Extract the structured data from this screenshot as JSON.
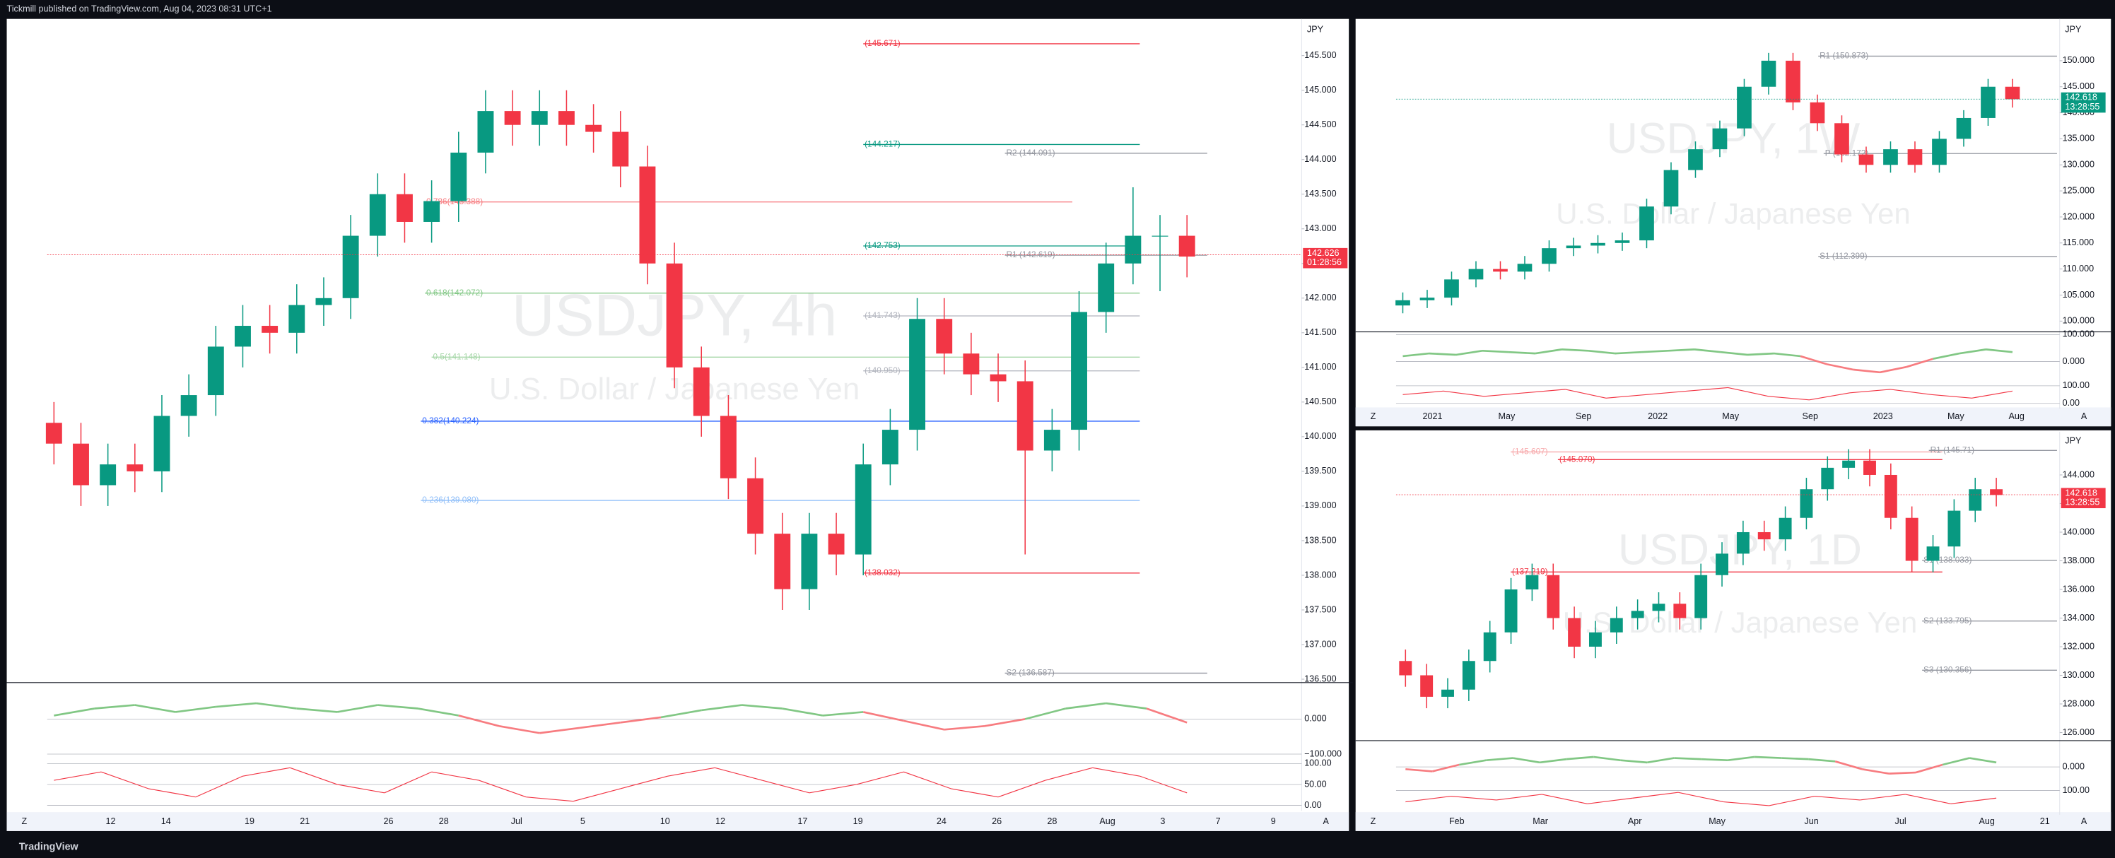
{
  "header": "Tickmill published on TradingView.com, Aug 04, 2023 08:31 UTC+1",
  "footer": "TradingView",
  "panels": [
    {
      "symbol": "USDJPY, 4h",
      "description": "U.S. Dollar / Japanese Yen",
      "currency": "JPY",
      "buttons": [
        "Z",
        "A"
      ],
      "last_price": 142.626,
      "countdown": "01:28:56",
      "tag_color": "#f23645",
      "ylim": [
        136.47,
        146.03
      ],
      "yticks": [
        {
          "value": 145.5,
          "label": "145.500"
        },
        {
          "value": 145,
          "label": "145.000"
        },
        {
          "value": 144.5,
          "label": "144.500"
        },
        {
          "value": 144,
          "label": "144.000"
        },
        {
          "value": 143.5,
          "label": "143.500"
        },
        {
          "value": 143,
          "label": "143.000"
        },
        {
          "value": 142.5,
          "label": "142.500"
        },
        {
          "value": 142,
          "label": "142.000"
        },
        {
          "value": 141.5,
          "label": "141.500"
        },
        {
          "value": 141,
          "label": "141.000"
        },
        {
          "value": 140.5,
          "label": "140.500"
        },
        {
          "value": 140,
          "label": "140.000"
        },
        {
          "value": 139.5,
          "label": "139.500"
        },
        {
          "value": 139,
          "label": "139.000"
        },
        {
          "value": 138.5,
          "label": "138.500"
        },
        {
          "value": 138,
          "label": "138.000"
        },
        {
          "value": 137.5,
          "label": "137.500"
        },
        {
          "value": 137,
          "label": "137.000"
        },
        {
          "value": 136.5,
          "label": "136.500"
        }
      ],
      "xticks": [
        "12",
        "14",
        "19",
        "21",
        "26",
        "28",
        "Jul",
        "5",
        "10",
        "12",
        "17",
        "19",
        "24",
        "26",
        "28",
        "Aug",
        "3",
        "7",
        "9"
      ],
      "candles": [
        [
          140.2,
          140.5,
          139.6,
          139.9
        ],
        [
          139.9,
          140.2,
          139.0,
          139.3
        ],
        [
          139.3,
          139.9,
          139.0,
          139.6
        ],
        [
          139.6,
          139.9,
          139.2,
          139.5
        ],
        [
          139.5,
          140.6,
          139.2,
          140.3
        ],
        [
          140.3,
          140.9,
          140.0,
          140.6
        ],
        [
          140.6,
          141.6,
          140.3,
          141.3
        ],
        [
          141.3,
          141.9,
          141.0,
          141.6
        ],
        [
          141.6,
          141.9,
          141.2,
          141.5
        ],
        [
          141.5,
          142.2,
          141.2,
          141.9
        ],
        [
          141.9,
          142.3,
          141.6,
          142.0
        ],
        [
          142.0,
          143.2,
          141.7,
          142.9
        ],
        [
          142.9,
          143.8,
          142.6,
          143.5
        ],
        [
          143.5,
          143.8,
          142.8,
          143.1
        ],
        [
          143.1,
          143.7,
          142.8,
          143.4
        ],
        [
          143.4,
          144.4,
          143.1,
          144.1
        ],
        [
          144.1,
          145.0,
          143.8,
          144.7
        ],
        [
          144.7,
          145.0,
          144.2,
          144.5
        ],
        [
          144.5,
          145.0,
          144.2,
          144.7
        ],
        [
          144.7,
          145.0,
          144.2,
          144.5
        ],
        [
          144.5,
          144.8,
          144.1,
          144.4
        ],
        [
          144.4,
          144.7,
          143.6,
          143.9
        ],
        [
          143.9,
          144.2,
          142.2,
          142.5
        ],
        [
          142.5,
          142.8,
          140.7,
          141.0
        ],
        [
          141.0,
          141.3,
          140.0,
          140.3
        ],
        [
          140.3,
          140.6,
          139.1,
          139.4
        ],
        [
          139.4,
          139.7,
          138.3,
          138.6
        ],
        [
          138.6,
          138.9,
          137.5,
          137.8
        ],
        [
          137.8,
          138.9,
          137.5,
          138.6
        ],
        [
          138.6,
          138.9,
          138.0,
          138.3
        ],
        [
          138.3,
          139.9,
          138.0,
          139.6
        ],
        [
          139.6,
          140.4,
          139.3,
          140.1
        ],
        [
          140.1,
          142.0,
          139.8,
          141.7
        ],
        [
          141.7,
          142.0,
          140.9,
          141.2
        ],
        [
          141.2,
          141.5,
          140.6,
          140.9
        ],
        [
          140.9,
          141.2,
          140.5,
          140.8
        ],
        [
          140.8,
          141.1,
          138.3,
          139.8
        ],
        [
          139.8,
          140.4,
          139.5,
          140.1
        ],
        [
          140.1,
          142.1,
          139.8,
          141.8
        ],
        [
          141.8,
          142.8,
          141.5,
          142.5
        ],
        [
          142.5,
          143.6,
          142.2,
          142.9
        ],
        [
          142.9,
          143.2,
          142.1,
          142.9
        ],
        [
          142.9,
          143.2,
          142.3,
          142.6
        ]
      ],
      "levels": [
        {
          "label": "(145.671)",
          "value": 145.671,
          "color": "#f23645"
        },
        {
          "label": "(144.217)",
          "value": 144.217,
          "color": "#089981"
        },
        {
          "label": "R2 (144.091)",
          "value": 144.091,
          "color": "#9598a1"
        },
        {
          "label": "0.786(143.388)",
          "value": 143.388,
          "color": "#f77c80"
        },
        {
          "label": "(142.753)",
          "value": 142.753,
          "color": "#089981"
        },
        {
          "label": "R1 (142.619)",
          "value": 142.619,
          "color": "#9598a1"
        },
        {
          "label": "0.618(142.072)",
          "value": 142.072,
          "color": "#81c784"
        },
        {
          "label": "(141.743)",
          "value": 141.743,
          "color": "#b2b5be"
        },
        {
          "label": "0.5(141.148)",
          "value": 141.148,
          "color": "#a5d6a7"
        },
        {
          "label": "(140.950)",
          "value": 140.95,
          "color": "#b2b5be"
        },
        {
          "label": "0.382(140.224)",
          "value": 140.224,
          "color": "#2962ff"
        },
        {
          "label": "0.236(139.080)",
          "value": 139.08,
          "color": "#90bff9"
        },
        {
          "label": "(138.032)",
          "value": 138.032,
          "color": "#f23645"
        },
        {
          "label": "S2 (136.587)",
          "value": 136.587,
          "color": "#9598a1"
        }
      ],
      "osc": {
        "ylim": [
          -100,
          100
        ],
        "yticks": [
          {
            "value": 0,
            "label": "0.000"
          },
          {
            "value": -100,
            "label": "−100.000"
          }
        ],
        "values": [
          10,
          30,
          40,
          20,
          35,
          45,
          30,
          20,
          40,
          30,
          10,
          -20,
          -40,
          -25,
          -10,
          5,
          25,
          40,
          30,
          10,
          20,
          -5,
          -30,
          -20,
          0,
          30,
          45,
          30,
          -10
        ]
      },
      "stoch": {
        "ylim": [
          0,
          100
        ],
        "yticks": [
          {
            "value": 100,
            "label": "100.00"
          },
          {
            "value": 50,
            "label": "50.00"
          },
          {
            "value": 0,
            "label": "0.00"
          }
        ],
        "values": [
          60,
          80,
          40,
          20,
          70,
          90,
          50,
          30,
          80,
          60,
          20,
          10,
          40,
          70,
          90,
          60,
          30,
          50,
          80,
          40,
          20,
          60,
          90,
          70,
          30
        ]
      }
    },
    {
      "symbol": "USDJPY, 1W",
      "description": "U.S. Dollar / Japanese Yen",
      "currency": "JPY",
      "buttons": [
        "Z",
        "A"
      ],
      "last_price": 142.618,
      "countdown": "13:28:55",
      "tag_color": "#089981",
      "ylim": [
        98.19,
        158.03
      ],
      "yticks": [
        {
          "value": 150,
          "label": "150.000"
        },
        {
          "value": 145,
          "label": "145.000"
        },
        {
          "value": 140,
          "label": "140.000"
        },
        {
          "value": 135,
          "label": "135.000"
        },
        {
          "value": 130,
          "label": "130.000"
        },
        {
          "value": 125,
          "label": "125.000"
        },
        {
          "value": 120,
          "label": "120.000"
        },
        {
          "value": 115,
          "label": "115.000"
        },
        {
          "value": 110,
          "label": "110.000"
        },
        {
          "value": 105,
          "label": "105.000"
        },
        {
          "value": 100,
          "label": "100.000"
        }
      ],
      "xticks": [
        "2021",
        "May",
        "Sep",
        "2022",
        "May",
        "Sep",
        "2023",
        "May",
        "Aug"
      ],
      "candles": [
        [
          103,
          105.5,
          101.5,
          104
        ],
        [
          104,
          106,
          102.5,
          104.5
        ],
        [
          104.5,
          109.5,
          103,
          108
        ],
        [
          108,
          111.5,
          106.5,
          110
        ],
        [
          110,
          111.5,
          108,
          109.5
        ],
        [
          109.5,
          112.5,
          108,
          111
        ],
        [
          111,
          115.5,
          109.5,
          114
        ],
        [
          114,
          116,
          112.5,
          114.5
        ],
        [
          114.5,
          116.5,
          113,
          115
        ],
        [
          115,
          117,
          113.5,
          115.5
        ],
        [
          115.5,
          123.5,
          114,
          122
        ],
        [
          122,
          130.5,
          120.5,
          129
        ],
        [
          129,
          134.5,
          127.5,
          133
        ],
        [
          133,
          138.5,
          131.5,
          137
        ],
        [
          137,
          146.5,
          135.5,
          145
        ],
        [
          145,
          151.5,
          143.5,
          150
        ],
        [
          150,
          151.5,
          140.5,
          142
        ],
        [
          142,
          143.5,
          136.5,
          138
        ],
        [
          138,
          139.5,
          130.5,
          132
        ],
        [
          132,
          133.5,
          128.5,
          130
        ],
        [
          130,
          134.5,
          128.5,
          133
        ],
        [
          133,
          134.5,
          128.5,
          130
        ],
        [
          130,
          136.5,
          128.5,
          135
        ],
        [
          135,
          140.5,
          133.5,
          139
        ],
        [
          139,
          146.5,
          137.5,
          145
        ],
        [
          145,
          146.5,
          141,
          142.6
        ]
      ],
      "levels": [
        {
          "label": "R1 (150.873)",
          "value": 150.873,
          "color": "#9598a1"
        },
        {
          "label": "P (132.172)",
          "value": 132.172,
          "color": "#9598a1"
        },
        {
          "label": "S1 (112.399)",
          "value": 112.399,
          "color": "#9598a1"
        }
      ],
      "osc": {
        "ylim": [
          -100,
          100
        ],
        "yticks": [
          {
            "value": 100,
            "label": "100.000"
          },
          {
            "value": 0,
            "label": "0.000"
          }
        ],
        "values": [
          20,
          30,
          25,
          40,
          35,
          30,
          45,
          40,
          30,
          35,
          40,
          45,
          35,
          25,
          30,
          20,
          -10,
          -30,
          -40,
          -20,
          10,
          30,
          45,
          35
        ]
      },
      "stoch": {
        "ylim": [
          0,
          100
        ],
        "yticks": [
          {
            "value": 100,
            "label": "100.00"
          },
          {
            "value": 0,
            "label": "0.00"
          }
        ],
        "values": [
          50,
          70,
          40,
          60,
          80,
          30,
          50,
          70,
          90,
          40,
          20,
          60,
          80,
          50,
          30,
          70
        ]
      }
    },
    {
      "symbol": "USDJPY, 1D",
      "description": "U.S. Dollar / Japanese Yen",
      "currency": "JPY",
      "buttons": [
        "Z",
        "A"
      ],
      "last_price": 142.618,
      "countdown": "13:28:55",
      "tag_color": "#f23645",
      "ylim": [
        125.53,
        147.02
      ],
      "yticks": [
        {
          "value": 144,
          "label": "144.000"
        },
        {
          "value": 142,
          "label": "142.000"
        },
        {
          "value": 140,
          "label": "140.000"
        },
        {
          "value": 138,
          "label": "138.000"
        },
        {
          "value": 136,
          "label": "136.000"
        },
        {
          "value": 134,
          "label": "134.000"
        },
        {
          "value": 132,
          "label": "132.000"
        },
        {
          "value": 130,
          "label": "130.000"
        },
        {
          "value": 128,
          "label": "128.000"
        },
        {
          "value": 126,
          "label": "126.000"
        }
      ],
      "xticks": [
        "Feb",
        "Mar",
        "Apr",
        "May",
        "Jun",
        "Jul",
        "Aug",
        "21"
      ],
      "candles": [
        [
          131,
          131.8,
          129.2,
          130
        ],
        [
          130,
          130.8,
          127.7,
          128.5
        ],
        [
          128.5,
          129.8,
          127.7,
          129
        ],
        [
          129,
          131.8,
          128.2,
          131
        ],
        [
          131,
          133.8,
          130.2,
          133
        ],
        [
          133,
          136.8,
          132.2,
          136
        ],
        [
          136,
          137.8,
          135.2,
          137
        ],
        [
          137,
          137.8,
          133.2,
          134
        ],
        [
          134,
          134.8,
          131.2,
          132
        ],
        [
          132,
          133.8,
          131.2,
          133
        ],
        [
          133,
          134.8,
          132.2,
          134
        ],
        [
          134,
          135.3,
          133.2,
          134.5
        ],
        [
          134.5,
          135.8,
          133.7,
          135
        ],
        [
          135,
          135.8,
          133.2,
          134
        ],
        [
          134,
          137.8,
          133.2,
          137
        ],
        [
          137,
          139.3,
          136.2,
          138.5
        ],
        [
          138.5,
          140.8,
          137.7,
          140
        ],
        [
          140,
          140.8,
          138.7,
          139.5
        ],
        [
          139.5,
          141.8,
          138.7,
          141
        ],
        [
          141,
          143.8,
          140.2,
          143
        ],
        [
          143,
          145.3,
          142.2,
          144.5
        ],
        [
          144.5,
          145.8,
          143.7,
          145
        ],
        [
          145,
          145.8,
          143.2,
          144
        ],
        [
          144,
          144.8,
          140.2,
          141
        ],
        [
          141,
          141.8,
          137.2,
          138
        ],
        [
          138,
          139.8,
          137.2,
          139
        ],
        [
          139,
          142.3,
          138.2,
          141.5
        ],
        [
          141.5,
          143.8,
          140.7,
          143
        ],
        [
          143,
          143.8,
          141.8,
          142.6
        ]
      ],
      "levels": [
        {
          "label": "(145.607)",
          "value": 145.607,
          "color": "#f7a9ab"
        },
        {
          "label": "(145.070)",
          "value": 145.07,
          "color": "#f23645"
        },
        {
          "label": "R1 (145.71)",
          "value": 145.71,
          "color": "#9598a1"
        },
        {
          "label": "S1 (138.033)",
          "value": 138.033,
          "color": "#9598a1"
        },
        {
          "label": "(137.219)",
          "value": 137.219,
          "color": "#f23645"
        },
        {
          "label": "S2 (133.795)",
          "value": 133.795,
          "color": "#9598a1"
        },
        {
          "label": "S3 (130.356)",
          "value": 130.356,
          "color": "#9598a1"
        }
      ],
      "osc": {
        "ylim": [
          -100,
          100
        ],
        "yticks": [
          {
            "value": 0,
            "label": "0.000"
          }
        ],
        "values": [
          -10,
          -20,
          10,
          30,
          40,
          20,
          35,
          45,
          30,
          20,
          40,
          35,
          30,
          45,
          40,
          35,
          25,
          -10,
          -30,
          -25,
          10,
          40,
          20
        ]
      },
      "stoch": {
        "ylim": [
          0,
          100
        ],
        "yticks": [
          {
            "value": 100,
            "label": "100.00"
          }
        ],
        "values": [
          40,
          70,
          50,
          80,
          30,
          60,
          90,
          40,
          20,
          70,
          50,
          80,
          30,
          60
        ]
      }
    }
  ]
}
